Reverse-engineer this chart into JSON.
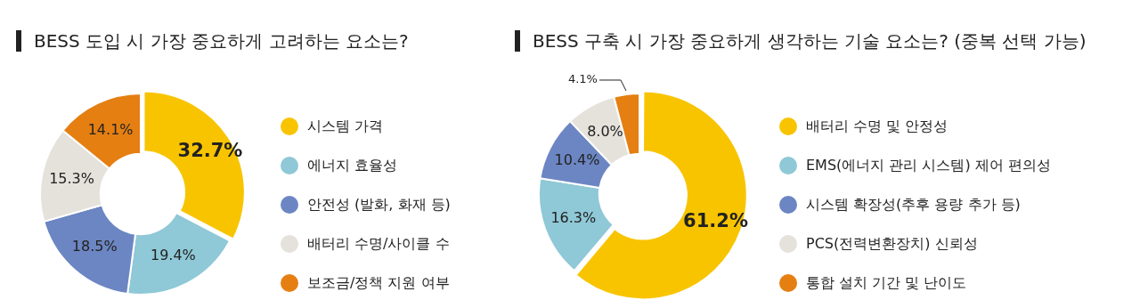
{
  "chart_data": [
    {
      "type": "donut",
      "title": "BESS 도입 시 가장 중요하게 고려하는 요소는?",
      "categories": [
        "시스템 가격",
        "에너지 효율성",
        "안전성 (발화, 화재 등)",
        "배터리 수명/사이클 수",
        "보조금/정책 지원 여부"
      ],
      "values": [
        32.7,
        19.4,
        18.5,
        15.3,
        14.1
      ],
      "value_labels": [
        "32.7%",
        "19.4%",
        "18.5%",
        "15.3%",
        "14.1%"
      ],
      "colors": [
        "#f8c400",
        "#8fc8d6",
        "#6c86c3",
        "#e4e2db",
        "#e57f12"
      ],
      "legend": "right"
    },
    {
      "type": "donut",
      "title": "BESS 구축 시 가장 중요하게 생각하는 기술 요소는? (중복 선택 가능)",
      "categories": [
        "배터리 수명 및 안정성",
        "EMS(에너지 관리 시스템) 제어 편의성",
        "시스템 확장성(추후 용량 추가 등)",
        "PCS(전력변환장치) 신뢰성",
        "통합 설치 기간 및 난이도"
      ],
      "values": [
        61.2,
        16.3,
        10.4,
        8.0,
        4.1
      ],
      "value_labels": [
        "61.2%",
        "16.3%",
        "10.4%",
        "8.0%",
        "4.1%"
      ],
      "colors": [
        "#f8c400",
        "#8fc8d6",
        "#6c86c3",
        "#e4e2db",
        "#e57f12"
      ],
      "legend": "right"
    }
  ]
}
